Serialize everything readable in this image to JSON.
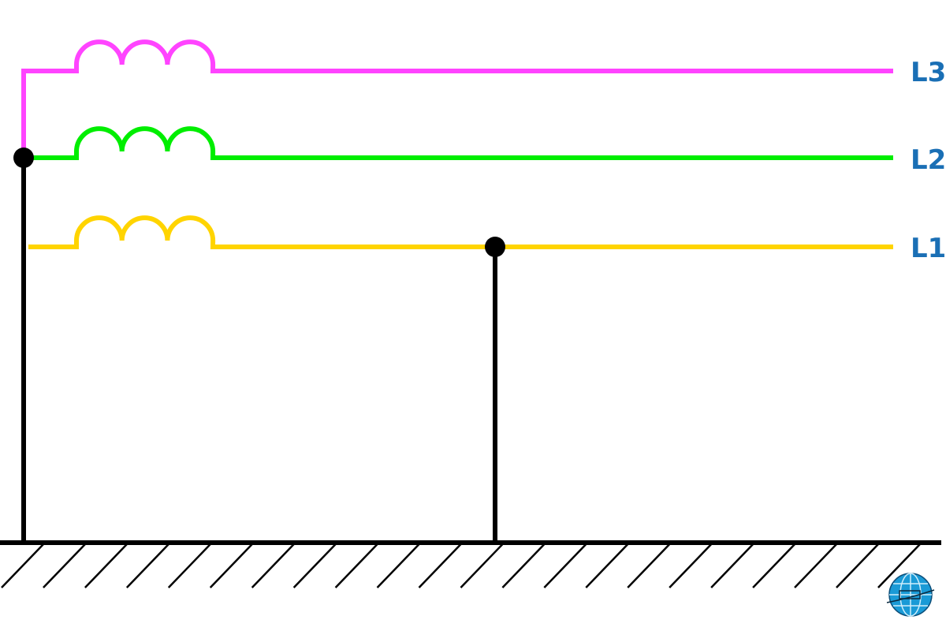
{
  "colors": {
    "L3": "#ff44ff",
    "L2": "#00ee00",
    "L1": "#ffd400",
    "neutral": "#000000",
    "label": "#1a6fb5",
    "logo": "#1a9ad6"
  },
  "phases": [
    {
      "id": "L3",
      "label": "L3"
    },
    {
      "id": "L2",
      "label": "L2"
    },
    {
      "id": "L1",
      "label": "L1"
    }
  ],
  "icons": {
    "logo": "globe-resistor-logo-icon",
    "ground": "ground-hatch-icon"
  }
}
